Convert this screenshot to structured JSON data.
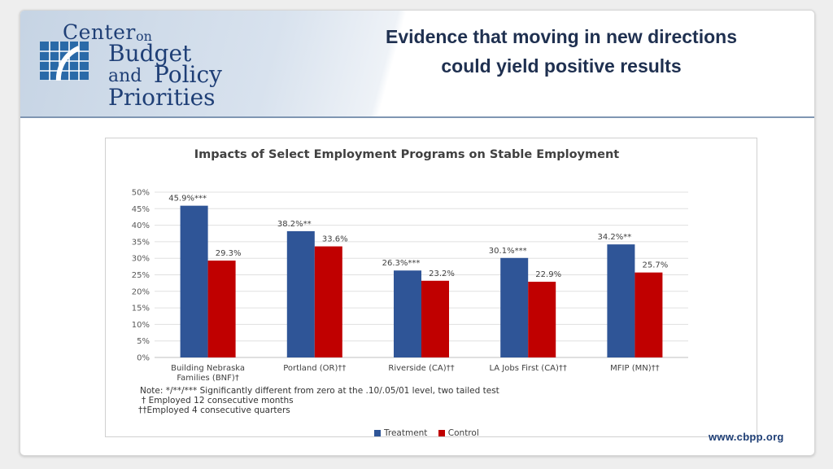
{
  "logo": {
    "line1": "Center",
    "line1b": "on",
    "line2": "Budget",
    "line3a": "and",
    "line3b": "Policy",
    "line4": "Priorities"
  },
  "slide": {
    "title_line1": "Evidence that moving in new directions",
    "title_line2": "could yield positive results"
  },
  "colors": {
    "treatment": "#2f5597",
    "control": "#c00000",
    "brand": "#1f3f76"
  },
  "chart_data": {
    "type": "bar",
    "title": "Impacts of Select Employment Programs on Stable Employment",
    "categories": [
      [
        "Building Nebraska",
        "Families (BNF)†"
      ],
      [
        "Portland (OR)††"
      ],
      [
        "Riverside (CA)††"
      ],
      [
        "LA Jobs First (CA)††"
      ],
      [
        "MFIP (MN)††"
      ]
    ],
    "series": [
      {
        "name": "Treatment",
        "values": [
          45.9,
          38.2,
          26.3,
          30.1,
          34.2
        ],
        "labels": [
          "45.9%***",
          "38.2%**",
          "26.3%***",
          "30.1%***",
          "34.2%**"
        ]
      },
      {
        "name": "Control",
        "values": [
          29.3,
          33.6,
          23.2,
          22.9,
          25.7
        ],
        "labels": [
          "29.3%",
          "33.6%",
          "23.2%",
          "22.9%",
          "25.7%"
        ]
      }
    ],
    "yticks": [
      "0%",
      "5%",
      "10%",
      "15%",
      "20%",
      "25%",
      "30%",
      "35%",
      "40%",
      "45%",
      "50%"
    ],
    "ylim": [
      0,
      50
    ],
    "grid": true,
    "legend": "bottom",
    "notes": [
      "Note: */**/*** Significantly different from zero at the .10/.05/01 level, two tailed test",
      "† Employed 12 consecutive months",
      "††Employed 4 consecutive quarters"
    ]
  },
  "footer": {
    "url": "www.cbpp.org"
  }
}
